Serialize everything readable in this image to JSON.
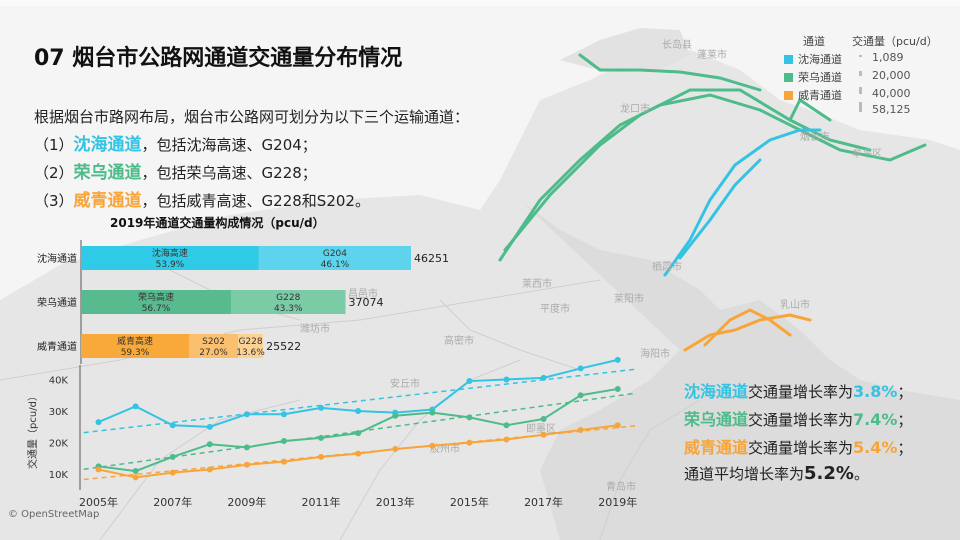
{
  "title": "07 烟台市公路网通道交通量分布情况",
  "intro": {
    "line0": "根据烟台市路网布局，烟台市公路网可划分为以下三个运输通道：",
    "items": [
      {
        "prefix": "（1）",
        "name": "沈海通道",
        "rest": "，包括沈海高速、G204；",
        "color": "#35c3e3"
      },
      {
        "prefix": "（2）",
        "name": "荣乌通道",
        "rest": "，包括荣乌高速、G228；",
        "color": "#4dbb8a"
      },
      {
        "prefix": "（3）",
        "name": "威青通道",
        "rest": "，包括威青高速、G228和S202。",
        "color": "#f7a53a"
      }
    ]
  },
  "legend": {
    "channel_title": "通道",
    "volume_title": "交通量（pcu/d）",
    "channels": [
      {
        "name": "沈海通道",
        "color": "#35c3e3"
      },
      {
        "name": "荣乌通道",
        "color": "#4dbb8a"
      },
      {
        "name": "威青通道",
        "color": "#f7a53a"
      }
    ],
    "volumes": [
      "1,089",
      "20,000",
      "40,000",
      "58,125"
    ]
  },
  "map_labels": [
    "长岛县",
    "蓬莱市",
    "龙口市",
    "烟台市",
    "牟平区",
    "栖霞市",
    "海阳市",
    "莱阳市",
    "莱西市",
    "平度市",
    "乳山市",
    "寿光市",
    "青州市",
    "潍坊市",
    "安丘市",
    "高密市",
    "胶州市",
    "即墨区",
    "青岛市",
    "昌邑市"
  ],
  "stacked": {
    "title": "2019年通道交通量构成情况（pcu/d）",
    "unit": "pcu/d",
    "rows": [
      {
        "channel": "沈海通道",
        "total": 46251,
        "total_label": "46251",
        "color": "#35c3e3",
        "segments": [
          {
            "name": "沈海高速",
            "pct_label": "53.9%",
            "pct": 53.9,
            "color": "#2fcbe6"
          },
          {
            "name": "G204",
            "pct_label": "46.1%",
            "pct": 46.1,
            "color": "#5ed3ee"
          }
        ]
      },
      {
        "channel": "荣乌通道",
        "total": 37074,
        "total_label": "37074",
        "color": "#4dbb8a",
        "segments": [
          {
            "name": "荣乌高速",
            "pct_label": "56.7%",
            "pct": 56.7,
            "color": "#57bb8f"
          },
          {
            "name": "G228",
            "pct_label": "43.3%",
            "pct": 43.3,
            "color": "#7ccba7"
          }
        ]
      },
      {
        "channel": "威青通道",
        "total": 25522,
        "total_label": "25522",
        "color": "#f7a53a",
        "segments": [
          {
            "name": "威青高速",
            "pct_label": "59.3%",
            "pct": 59.3,
            "color": "#f8a93a"
          },
          {
            "name": "S202",
            "pct_label": "27.0%",
            "pct": 27.0,
            "color": "#fac070"
          },
          {
            "name": "G228",
            "pct_label": "13.6%",
            "pct": 13.6,
            "color": "#fbd294"
          }
        ]
      }
    ]
  },
  "chart_data": [
    {
      "type": "bar",
      "title": "2019年通道交通量构成情况（pcu/d）",
      "categories": [
        "沈海通道",
        "荣乌通道",
        "威青通道"
      ],
      "totals": [
        46251,
        37074,
        25522
      ],
      "series": [
        {
          "name": "沈海高速",
          "values": [
            53.9,
            null,
            null
          ]
        },
        {
          "name": "G204",
          "values": [
            46.1,
            null,
            null
          ]
        },
        {
          "name": "荣乌高速",
          "values": [
            null,
            56.7,
            null
          ]
        },
        {
          "name": "G228",
          "values": [
            null,
            43.3,
            13.6
          ]
        },
        {
          "name": "威青高速",
          "values": [
            null,
            null,
            59.3
          ]
        },
        {
          "name": "S202",
          "values": [
            null,
            null,
            27.0
          ]
        }
      ]
    },
    {
      "type": "line",
      "x": [
        2005,
        2006,
        2007,
        2008,
        2009,
        2010,
        2011,
        2012,
        2013,
        2014,
        2015,
        2016,
        2017,
        2018,
        2019
      ],
      "xticks": [
        "2005年",
        "2007年",
        "2009年",
        "2011年",
        "2013年",
        "2015年",
        "2017年",
        "2019年"
      ],
      "xtick_values": [
        2005,
        2007,
        2009,
        2011,
        2013,
        2015,
        2017,
        2019
      ],
      "ylabel": "交通量（pcu/d）",
      "yticks": [
        "10K",
        "20K",
        "30K",
        "40K"
      ],
      "ytick_values": [
        10000,
        20000,
        30000,
        40000
      ],
      "ylim": [
        5000,
        43000
      ],
      "trendlines": true,
      "series": [
        {
          "name": "沈海通道",
          "color": "#35c3e3",
          "values": [
            26500,
            31500,
            25500,
            25000,
            29000,
            29000,
            31000,
            30000,
            29500,
            30500,
            39500,
            40000,
            40500,
            43500,
            46200
          ]
        },
        {
          "name": "荣乌通道",
          "color": "#4dbb8a",
          "values": [
            12500,
            11000,
            15500,
            19500,
            18500,
            20500,
            21500,
            23000,
            28500,
            29500,
            28000,
            25500,
            27500,
            35000,
            37000
          ]
        },
        {
          "name": "威青通道",
          "color": "#f7a53a",
          "values": [
            11500,
            9000,
            10500,
            11500,
            13000,
            14000,
            15500,
            16500,
            18000,
            19000,
            20000,
            21000,
            22500,
            24000,
            25500
          ]
        }
      ]
    }
  ],
  "rates": [
    {
      "name": "沈海通道",
      "text": "交通量增长率为",
      "value": "3.8%",
      "end": "；",
      "color": "#35c3e3"
    },
    {
      "name": "荣乌通道",
      "text": "交通量增长率为",
      "value": "7.4%",
      "end": "；",
      "color": "#4dbb8a"
    },
    {
      "name": "威青通道",
      "text": "交通量增长率为",
      "value": "5.4%",
      "end": "；",
      "color": "#f7a53a"
    }
  ],
  "avg_rate": {
    "text": "通道平均增长率为",
    "value": "5.2%",
    "end": "。"
  },
  "attribution": "© OpenStreetMap"
}
